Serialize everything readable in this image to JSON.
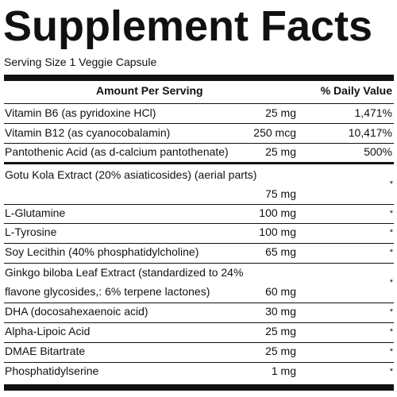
{
  "title": "Supplement Facts",
  "serving": "Serving Size 1 Veggie Capsule",
  "header": {
    "amount": "Amount Per Serving",
    "dv": "% Daily Value"
  },
  "vitamins": [
    {
      "name": "Vitamin B6 (as pyridoxine HCl)",
      "amount": "25 mg",
      "dv": "1,471%"
    },
    {
      "name": "Vitamin B12 (as cyanocobalamin)",
      "amount": "250 mcg",
      "dv": "10,417%"
    },
    {
      "name": "Pantothenic Acid (as d-calcium pantothenate)",
      "amount": "25 mg",
      "dv": "500%"
    }
  ],
  "gotu": {
    "name": "Gotu Kola Extract (20% asiaticosides) (aerial parts)",
    "amount": "75 mg",
    "dv": "*"
  },
  "others": [
    {
      "name": "L-Glutamine",
      "amount": "100 mg",
      "dv": "*"
    },
    {
      "name": "L-Tyrosine",
      "amount": "100 mg",
      "dv": "*"
    },
    {
      "name": "Soy Lecithin (40% phosphatidylcholine)",
      "amount": "65 mg",
      "dv": "*"
    }
  ],
  "ginkgo": {
    "line1": "Ginkgo biloba Leaf Extract (standardized to 24%",
    "line2": "flavone glycosides,: 6% terpene lactones)",
    "amount": "60 mg",
    "dv": "*"
  },
  "rest": [
    {
      "name": "DHA (docosahexaenoic acid)",
      "amount": "30 mg",
      "dv": "*"
    },
    {
      "name": "Alpha-Lipoic Acid",
      "amount": "25 mg",
      "dv": "*"
    },
    {
      "name": "DMAE Bitartrate",
      "amount": "25 mg",
      "dv": "*"
    },
    {
      "name": "Phosphatidylserine",
      "amount": "1 mg",
      "dv": "*"
    }
  ]
}
